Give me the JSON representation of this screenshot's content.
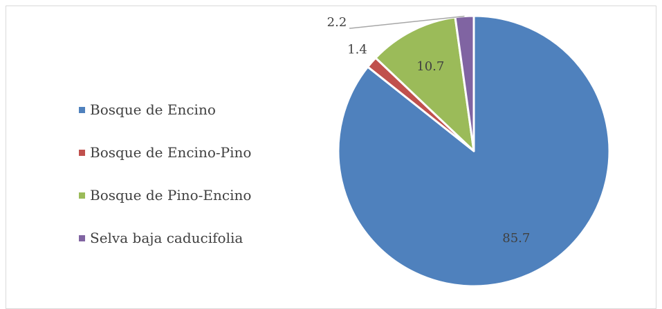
{
  "chart_data": {
    "type": "pie",
    "categories": [
      "Bosque de Encino",
      "Bosque de Encino-Pino",
      "Bosque de Pino-Encino",
      "Selva baja caducifolia"
    ],
    "values": [
      85.7,
      1.4,
      10.7,
      2.2
    ],
    "data_labels": [
      "85.7",
      "1.4",
      "10.7",
      "2.2"
    ],
    "colors": [
      "#4f81bd",
      "#c0504d",
      "#9bbb59",
      "#8064a2"
    ],
    "start_angle_deg": 0,
    "direction": "clockwise",
    "legend_position": "left",
    "slice_border_color": "#ffffff",
    "label_text_color": "#404040"
  }
}
